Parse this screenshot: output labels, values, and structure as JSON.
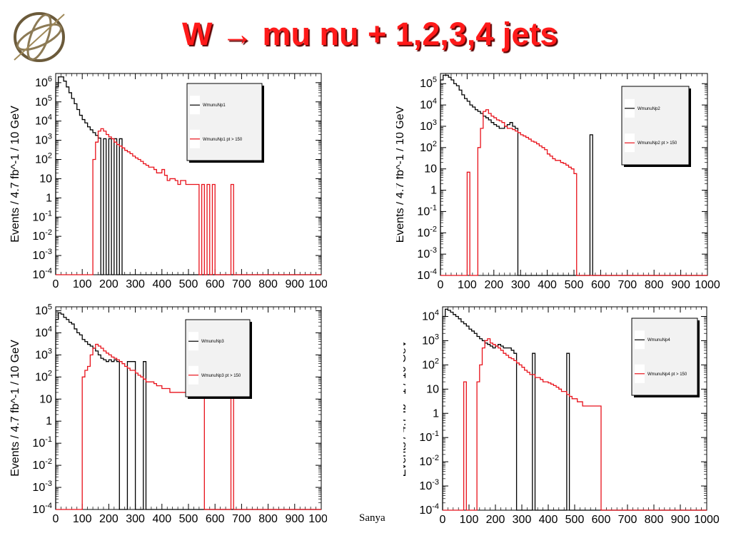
{
  "title": "W → mu nu + 1,2,3,4 jets",
  "footer": "Sanya",
  "colors": {
    "title": "#ff1a1a",
    "series_all": "#000000",
    "series_cut": "#e8111a"
  },
  "icons": {
    "logo": "gyroscope-logo-icon"
  },
  "chart_data": [
    {
      "type": "histogram",
      "ylabel": "Events / 4.7 fb^-1 / 10 GeV",
      "xlim": [
        0,
        1000
      ],
      "yscale": "log",
      "ylim": [
        0.0001,
        3000000
      ],
      "yticks": [
        {
          "v": 1000000,
          "t": "10",
          "s": "6"
        },
        {
          "v": 100000,
          "t": "10",
          "s": "5"
        },
        {
          "v": 10000,
          "t": "10",
          "s": "4"
        },
        {
          "v": 1000,
          "t": "10",
          "s": "3"
        },
        {
          "v": 100,
          "t": "10",
          "s": "2"
        },
        {
          "v": 10,
          "t": "10",
          "s": ""
        },
        {
          "v": 1,
          "t": "1",
          "s": ""
        },
        {
          "v": 0.1,
          "t": "10",
          "s": "-1"
        },
        {
          "v": 0.01,
          "t": "10",
          "s": "-2"
        },
        {
          "v": 0.001,
          "t": "10",
          "s": "-3"
        },
        {
          "v": 0.0001,
          "t": "10",
          "s": "-4"
        }
      ],
      "xticks": [
        "0",
        "100",
        "200",
        "300",
        "400",
        "500",
        "600",
        "700",
        "800",
        "900",
        "1000"
      ],
      "bin_width": 10,
      "x_start": 0,
      "series": [
        {
          "name": "WmunuNp1",
          "values": [
            600000,
            2000000,
            2000000,
            1200000,
            600000,
            300000,
            150000,
            80000,
            40000,
            20000,
            12000,
            8000,
            5000,
            3500,
            2500,
            1800,
            1300,
            0.0001,
            1200,
            0.0001,
            1200,
            0.0001,
            1200,
            0.0001,
            1200,
            0.0001
          ]
        },
        {
          "name": "WmunuNp1 pt > 150",
          "values": [
            0.0001,
            0.0001,
            0.0001,
            0.0001,
            0.0001,
            0.0001,
            0.0001,
            0.0001,
            0.0001,
            0.0001,
            0.0001,
            0.0001,
            0.0001,
            0.0001,
            100,
            800,
            3000,
            4000,
            3000,
            2000,
            1500,
            1200,
            800,
            600,
            500,
            400,
            300,
            250,
            200,
            150,
            120,
            100,
            80,
            60,
            50,
            40,
            40,
            30,
            20,
            20,
            30,
            15,
            8,
            10,
            10,
            8,
            5,
            8,
            8,
            5,
            5,
            5,
            5,
            5,
            0.0001,
            5,
            0.0001,
            5,
            0.0001,
            5,
            0.0001,
            0.0001,
            0.0001,
            0.0001,
            0.0001,
            0.0001,
            5,
            0.0001
          ]
        }
      ],
      "plot_pos": [
        70,
        100,
        372,
        285
      ],
      "legend_pos": [
        327,
        118,
        107,
        108
      ]
    },
    {
      "type": "histogram",
      "ylabel": "Events / 4.7 fb^-1 / 10 GeV",
      "xlim": [
        0,
        1000
      ],
      "yscale": "log",
      "ylim": [
        0.0001,
        300000
      ],
      "yticks": [
        {
          "v": 100000,
          "t": "10",
          "s": "5"
        },
        {
          "v": 10000,
          "t": "10",
          "s": "4"
        },
        {
          "v": 1000,
          "t": "10",
          "s": "3"
        },
        {
          "v": 100,
          "t": "10",
          "s": "2"
        },
        {
          "v": 10,
          "t": "10",
          "s": ""
        },
        {
          "v": 1,
          "t": "1",
          "s": ""
        },
        {
          "v": 0.1,
          "t": "10",
          "s": "-1"
        },
        {
          "v": 0.01,
          "t": "10",
          "s": "-2"
        },
        {
          "v": 0.001,
          "t": "10",
          "s": "-3"
        },
        {
          "v": 0.0001,
          "t": "10",
          "s": "-4"
        }
      ],
      "xticks": [
        "0",
        "100",
        "200",
        "300",
        "400",
        "500",
        "600",
        "700",
        "800",
        "900",
        "1000"
      ],
      "bin_width": 10,
      "x_start": 0,
      "series": [
        {
          "name": "WmunuNp2",
          "values": [
            150000,
            250000,
            250000,
            200000,
            150000,
            100000,
            80000,
            50000,
            30000,
            20000,
            15000,
            10000,
            8000,
            6000,
            5000,
            4000,
            3000,
            2500,
            2000,
            1500,
            1200,
            1000,
            800,
            800,
            1000,
            1200,
            1500,
            1000,
            800,
            0.0001,
            0.0001,
            0.0001,
            0.0001,
            0.0001,
            0.0001,
            0.0001,
            0.0001,
            0.0001,
            0.0001,
            0.0001,
            0.0001,
            0.0001,
            0.0001,
            0.0001,
            0.0001,
            0.0001,
            0.0001,
            0.0001,
            0.0001,
            0.0001,
            0.0001,
            0.0001,
            0.0001,
            0.0001,
            0.0001,
            0.0001,
            400,
            0.0001
          ]
        },
        {
          "name": "WmunuNp2 pt > 150",
          "values": [
            0.0001,
            0.0001,
            0.0001,
            0.0001,
            0.0001,
            0.0001,
            0.0001,
            0.0001,
            0.0001,
            0.0001,
            7,
            0.0001,
            0.0001,
            0.0001,
            100,
            800,
            5000,
            6000,
            4000,
            3000,
            2500,
            2000,
            1800,
            1500,
            1000,
            800,
            800,
            700,
            600,
            500,
            400,
            350,
            300,
            250,
            200,
            180,
            150,
            120,
            100,
            80,
            50,
            40,
            30,
            25,
            25,
            20,
            18,
            15,
            12,
            10,
            6,
            0.0001,
            0.0001,
            0.0001,
            0.0001,
            0.0001,
            0.0001,
            0.0001,
            0.0001,
            0.0001,
            0.0001,
            0.0001,
            0.0001,
            0.0001,
            0.0001,
            0.0001,
            0.0001,
            0.0001,
            0.0001,
            0.0001,
            0.0001,
            0.0001,
            0.0001,
            0.0001,
            0.0001,
            0.0001,
            0.0001
          ]
        }
      ],
      "plot_pos": [
        617,
        100,
        374,
        286
      ],
      "legend_pos": [
        871,
        121,
        95,
        112
      ]
    },
    {
      "type": "histogram",
      "ylabel": "Events / 4.7 fb^-1 / 10 GeV",
      "xlim": [
        0,
        1000
      ],
      "yscale": "log",
      "ylim": [
        0.0001,
        150000
      ],
      "yticks": [
        {
          "v": 100000,
          "t": "10",
          "s": "5"
        },
        {
          "v": 10000,
          "t": "10",
          "s": "4"
        },
        {
          "v": 1000,
          "t": "10",
          "s": "3"
        },
        {
          "v": 100,
          "t": "10",
          "s": "2"
        },
        {
          "v": 10,
          "t": "10",
          "s": ""
        },
        {
          "v": 1,
          "t": "1",
          "s": ""
        },
        {
          "v": 0.1,
          "t": "10",
          "s": "-1"
        },
        {
          "v": 0.01,
          "t": "10",
          "s": "-2"
        },
        {
          "v": 0.001,
          "t": "10",
          "s": "-3"
        },
        {
          "v": 0.0001,
          "t": "10",
          "s": "-4"
        }
      ],
      "xticks": [
        "0",
        "100",
        "200",
        "300",
        "400",
        "500",
        "600",
        "700",
        "800",
        "900",
        "1000"
      ],
      "bin_width": 10,
      "x_start": 0,
      "series": [
        {
          "name": "WmunuNp3",
          "values": [
            40000,
            80000,
            70000,
            50000,
            40000,
            30000,
            25000,
            15000,
            10000,
            8000,
            5000,
            4000,
            3000,
            2500,
            2000,
            1500,
            1000,
            700,
            600,
            500,
            600,
            500,
            600,
            500,
            0.0001,
            0.0001,
            0.0001,
            500,
            500,
            500,
            0.0001,
            0.0001,
            0.0001,
            500,
            0.0001
          ]
        },
        {
          "name": "WmunuNp3 pt > 150",
          "values": [
            0.0001,
            0.0001,
            0.0001,
            0.0001,
            0.0001,
            0.0001,
            0.0001,
            0.0001,
            0.0001,
            0.0001,
            100,
            200,
            300,
            1000,
            2000,
            3000,
            2500,
            2000,
            1500,
            1200,
            1000,
            800,
            700,
            600,
            500,
            400,
            300,
            250,
            200,
            200,
            150,
            120,
            100,
            80,
            60,
            60,
            60,
            50,
            40,
            40,
            30,
            30,
            30,
            20,
            20,
            20,
            20,
            20,
            20,
            20,
            20,
            20,
            20,
            20,
            20,
            20,
            0.0001,
            0.0001,
            0.0001,
            0.0001,
            0.0001,
            0.0001,
            0.0001,
            0.0001,
            0.0001,
            0.0001,
            20,
            0.0001
          ]
        }
      ],
      "plot_pos": [
        70,
        430,
        372,
        284
      ],
      "legend_pos": [
        330,
        448,
        90,
        108
      ]
    },
    {
      "type": "histogram",
      "ylabel": "Events / 4.7 fb^-1 / 10 GeV",
      "xlim": [
        0,
        1000
      ],
      "yscale": "log",
      "ylim": [
        0.0001,
        25000
      ],
      "yticks": [
        {
          "v": 10000,
          "t": "10",
          "s": "4"
        },
        {
          "v": 1000,
          "t": "10",
          "s": "3"
        },
        {
          "v": 100,
          "t": "10",
          "s": "2"
        },
        {
          "v": 10,
          "t": "10",
          "s": ""
        },
        {
          "v": 1,
          "t": "1",
          "s": ""
        },
        {
          "v": 0.1,
          "t": "10",
          "s": "-1"
        },
        {
          "v": 0.01,
          "t": "10",
          "s": "-2"
        },
        {
          "v": 0.001,
          "t": "10",
          "s": "-3"
        },
        {
          "v": 0.0001,
          "t": "10",
          "s": "-4"
        }
      ],
      "xticks": [
        "0",
        "100",
        "200",
        "300",
        "400",
        "500",
        "600",
        "700",
        "800",
        "900",
        "1000"
      ],
      "bin_width": 10,
      "x_start": 0,
      "series": [
        {
          "name": "WmunuNp4",
          "values": [
            10000,
            20000,
            18000,
            15000,
            12000,
            10000,
            8000,
            6000,
            5000,
            4000,
            3000,
            2500,
            2000,
            1500,
            1200,
            1000,
            800,
            700,
            600,
            500,
            600,
            700,
            600,
            500,
            500,
            500,
            400,
            300,
            0.0001,
            0.0001,
            0.0001,
            0.0001,
            0.0001,
            0.0001,
            300,
            0.0001,
            0.0001,
            0.0001,
            0.0001,
            0.0001,
            0.0001,
            0.0001,
            0.0001,
            0.0001,
            0.0001,
            0.0001,
            0.0001,
            300,
            0.0001
          ]
        },
        {
          "name": "WmunuNp4 pt > 150",
          "values": [
            0.0001,
            0.0001,
            0.0001,
            0.0001,
            0.0001,
            0.0001,
            0.0001,
            0.0001,
            20,
            0.0001,
            0.0001,
            0.0001,
            0.0001,
            20,
            100,
            500,
            1000,
            1200,
            800,
            700,
            600,
            500,
            400,
            300,
            250,
            200,
            180,
            150,
            120,
            100,
            80,
            60,
            50,
            40,
            40,
            30,
            30,
            25,
            20,
            20,
            18,
            16,
            14,
            12,
            10,
            8,
            8,
            6,
            5,
            4,
            4,
            3,
            3,
            2,
            2,
            2,
            2,
            2,
            2,
            2,
            0.0001
          ]
        }
      ],
      "plot_pos": [
        620,
        430,
        370,
        285
      ],
      "legend_pos": [
        885,
        446,
        92,
        108
      ]
    }
  ]
}
